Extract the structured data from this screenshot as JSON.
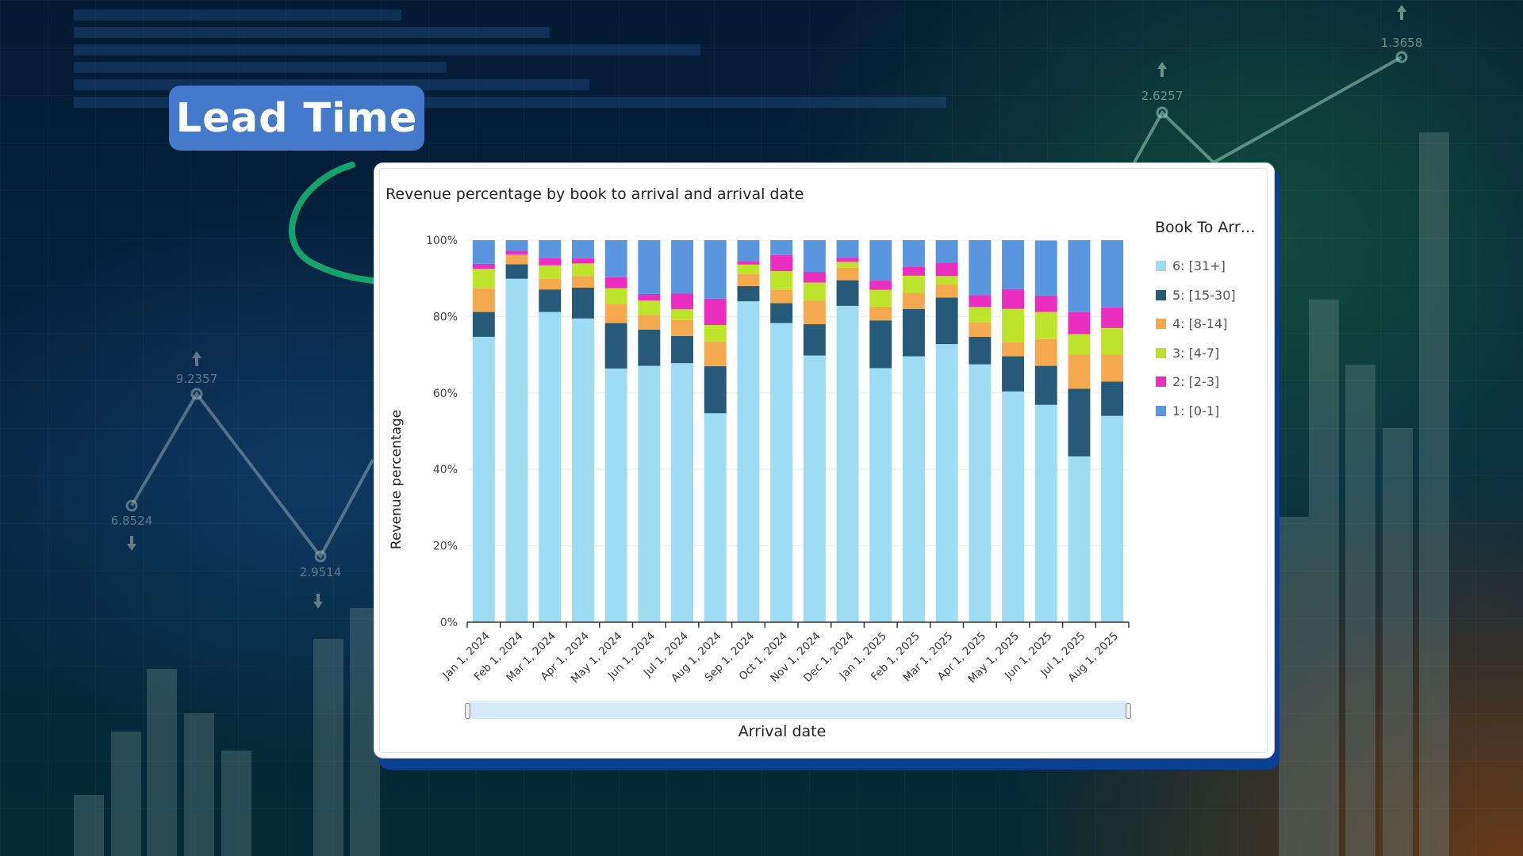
{
  "overlay": {
    "label": "Lead Time"
  },
  "background": {
    "line_labels": [
      "6.8524",
      "9.2357",
      "2.9514",
      "2.6257",
      "1.3658"
    ]
  },
  "colors": {
    "pill": "#4479cc",
    "arrow": "#13a36b",
    "card_accent": "#0a3f92"
  },
  "chart_data": {
    "type": "bar",
    "stacked": true,
    "title": "Revenue percentage by book to arrival and arrival date",
    "xlabel": "Arrival date",
    "ylabel": "Revenue percentage",
    "ylim": [
      0,
      100
    ],
    "yticks": [
      "0%",
      "20%",
      "40%",
      "60%",
      "80%",
      "100%"
    ],
    "ytick_values": [
      0,
      20,
      40,
      60,
      80,
      100
    ],
    "grid": true,
    "legend_title": "Book To Arr…",
    "legend_position": "right",
    "categories": [
      "Jan 1, 2024",
      "Feb 1, 2024",
      "Mar 1, 2024",
      "Apr 1, 2024",
      "May 1, 2024",
      "Jun 1, 2024",
      "Jul 1, 2024",
      "Aug 1, 2024",
      "Sep 1, 2024",
      "Oct 1, 2024",
      "Nov 1, 2024",
      "Dec 1, 2024",
      "Jan 1, 2025",
      "Feb 1, 2025",
      "Mar 1, 2025",
      "Apr 1, 2025",
      "May 1, 2025",
      "Jun 1, 2025",
      "Jul 1, 2025",
      "Aug 1, 2025"
    ],
    "series": [
      {
        "name": "6: [31+]",
        "color": "#9ddcf2",
        "values": [
          74.7,
          89.9,
          81.2,
          79.5,
          66.4,
          67.1,
          67.8,
          54.7,
          84.0,
          78.3,
          69.8,
          82.8,
          66.5,
          69.6,
          72.8,
          67.5,
          60.4,
          56.9,
          43.4,
          54.0
        ]
      },
      {
        "name": "5: [15-30]",
        "color": "#265a78",
        "values": [
          6.5,
          3.8,
          5.9,
          8.1,
          11.9,
          9.5,
          7.1,
          12.3,
          4.0,
          5.2,
          8.2,
          6.7,
          12.5,
          12.4,
          12.2,
          7.2,
          9.2,
          10.2,
          17.7,
          9.0
        ]
      },
      {
        "name": "4: [8-14]",
        "color": "#f5a94e",
        "values": [
          6.2,
          2.4,
          2.8,
          3.0,
          4.9,
          3.8,
          4.2,
          6.5,
          3.1,
          3.5,
          6.2,
          3.3,
          3.6,
          4.2,
          3.5,
          3.8,
          3.7,
          7.0,
          9.0,
          7.1
        ]
      },
      {
        "name": "3: [4-7]",
        "color": "#bde32a",
        "values": [
          5.1,
          0.1,
          3.5,
          3.3,
          4.2,
          3.8,
          2.8,
          4.3,
          2.5,
          4.9,
          4.7,
          1.5,
          4.4,
          4.5,
          2.1,
          4.0,
          8.7,
          7.1,
          5.3,
          6.9
        ]
      },
      {
        "name": "2: [2-3]",
        "color": "#ea2fc0",
        "values": [
          1.3,
          1.0,
          1.9,
          1.4,
          2.9,
          1.7,
          4.1,
          6.9,
          0.8,
          4.2,
          2.8,
          1.2,
          2.4,
          2.4,
          3.5,
          3.1,
          5.2,
          4.3,
          5.8,
          5.4
        ]
      },
      {
        "name": "1: [0-1]",
        "color": "#5a96e0",
        "values": [
          6.2,
          2.8,
          4.7,
          4.7,
          9.7,
          14.1,
          14.0,
          15.3,
          5.6,
          3.9,
          8.3,
          4.5,
          10.6,
          6.9,
          5.9,
          14.4,
          12.8,
          14.4,
          18.8,
          17.6
        ]
      }
    ]
  }
}
